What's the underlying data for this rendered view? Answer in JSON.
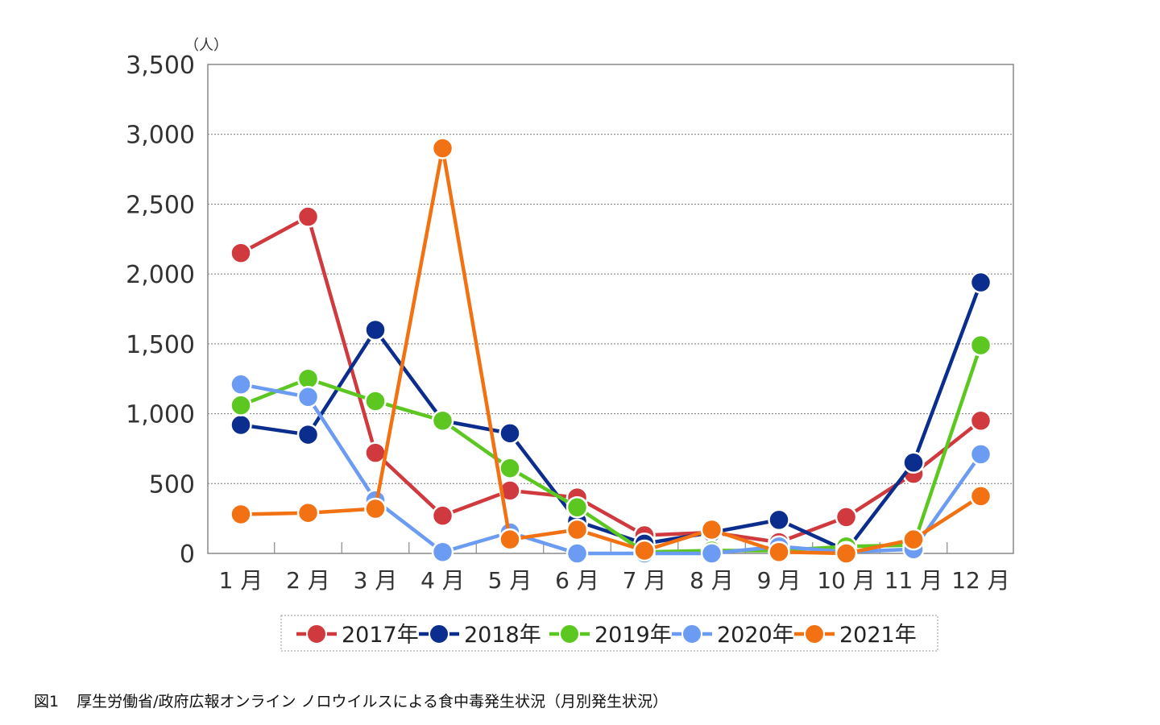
{
  "chart_data": {
    "type": "line",
    "title": "",
    "xlabel": "",
    "ylabel": "",
    "y_unit_label": "（人）",
    "categories": [
      "1 月",
      "2 月",
      "3 月",
      "4 月",
      "5 月",
      "6 月",
      "7 月",
      "8 月",
      "9 月",
      "10 月",
      "11 月",
      "12 月"
    ],
    "ylim": [
      0,
      3500
    ],
    "yticks": [
      0,
      500,
      1000,
      1500,
      2000,
      2500,
      3000,
      3500
    ],
    "ytick_labels": [
      "0",
      "500",
      "1,000",
      "1,500",
      "2,000",
      "2,500",
      "3,000",
      "3,500"
    ],
    "grid": "horizontal dashed",
    "legend_position": "bottom",
    "series": [
      {
        "name": "2017年",
        "color": "#d03a3e",
        "values": [
          2150,
          2410,
          720,
          270,
          450,
          400,
          130,
          150,
          80,
          260,
          570,
          950
        ]
      },
      {
        "name": "2018年",
        "color": "#0b2d8e",
        "values": [
          920,
          850,
          1600,
          950,
          860,
          230,
          70,
          150,
          240,
          20,
          650,
          1940
        ]
      },
      {
        "name": "2019年",
        "color": "#5dc722",
        "values": [
          1060,
          1250,
          1090,
          950,
          610,
          330,
          10,
          20,
          20,
          50,
          60,
          1490
        ]
      },
      {
        "name": "2020年",
        "color": "#6b9bf2",
        "values": [
          1210,
          1120,
          380,
          10,
          150,
          0,
          0,
          0,
          50,
          10,
          30,
          710
        ]
      },
      {
        "name": "2021年",
        "color": "#f27213",
        "values": [
          280,
          290,
          320,
          2900,
          100,
          170,
          20,
          170,
          10,
          0,
          100,
          410
        ]
      }
    ]
  },
  "caption": {
    "figure_number": "図1",
    "text": "厚生労働省/政府広報オンライン ノロウイルスによる食中毒発生状況（月別発生状況）"
  }
}
